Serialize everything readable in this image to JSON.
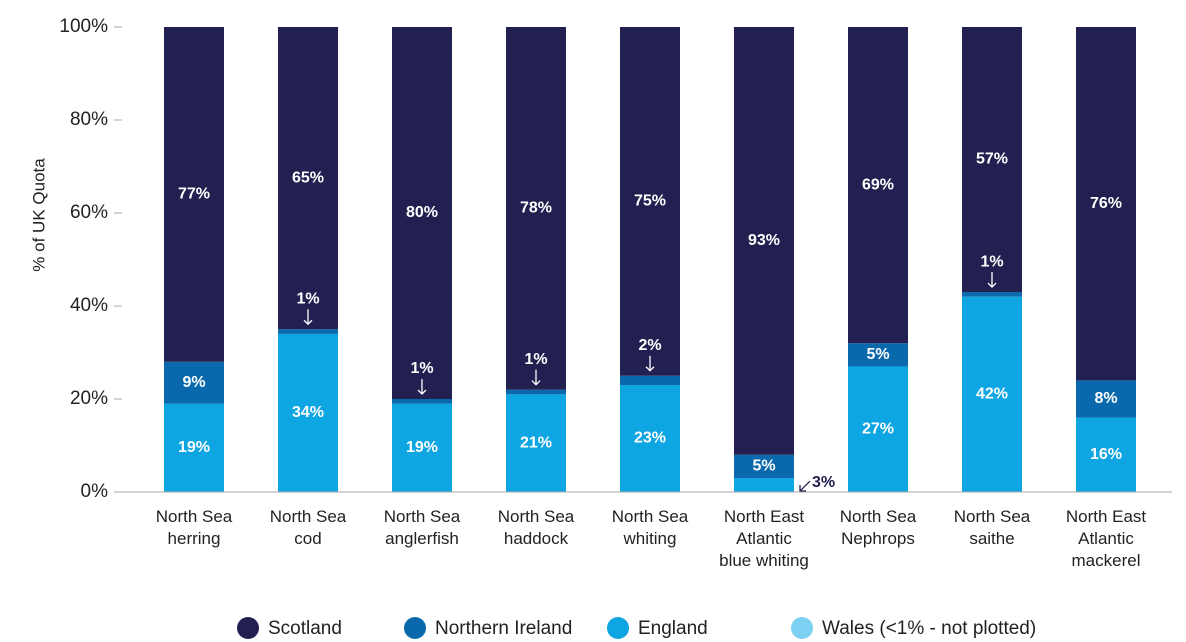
{
  "chart_data": {
    "type": "stacked_bar",
    "y_label": "% of UK Quota",
    "categories": [
      "North Sea\nherring",
      "North Sea\ncod",
      "North Sea\nanglerfish",
      "North Sea\nhaddock",
      "North Sea\nwhiting",
      "North East\nAtlantic\nblue whiting",
      "North Sea\nNephrops",
      "North Sea\nsaithe",
      "North East\nAtlantic\nmackerel"
    ],
    "series": [
      {
        "name": "England",
        "color": "#0ea5e3",
        "values": [
          19,
          34,
          19,
          21,
          23,
          3,
          27,
          42,
          16
        ],
        "value_labels": [
          "19%",
          "34%",
          "19%",
          "21%",
          "23%",
          "3%",
          "27%",
          "42%",
          "16%"
        ]
      },
      {
        "name": "Northern Ireland",
        "color": "#0a69ad",
        "values": [
          9,
          1,
          1,
          1,
          2,
          5,
          5,
          1,
          8
        ],
        "value_labels": [
          "9%",
          "1%",
          "1%",
          "1%",
          "2%",
          "5%",
          "5%",
          "1%",
          "8%"
        ]
      },
      {
        "name": "Scotland",
        "color": "#222050",
        "values": [
          77,
          65,
          80,
          78,
          75,
          93,
          69,
          57,
          76
        ],
        "value_labels": [
          "77%",
          "65%",
          "80%",
          "78%",
          "75%",
          "93%",
          "69%",
          "57%",
          "76%"
        ]
      },
      {
        "name": "Wales (<1% - not plotted)",
        "color": "#7dd0f2",
        "values": [
          null,
          null,
          null,
          null,
          null,
          null,
          null,
          null,
          null
        ]
      }
    ],
    "legend_order": [
      2,
      1,
      0,
      3
    ],
    "ylim": [
      0,
      100
    ],
    "yticks": [
      {
        "value": 0,
        "label": "0%"
      },
      {
        "value": 20,
        "label": "20%"
      },
      {
        "value": 40,
        "label": "40%"
      },
      {
        "value": 60,
        "label": "60%"
      },
      {
        "value": 80,
        "label": "80%"
      },
      {
        "value": 100,
        "label": "100%"
      }
    ],
    "grid": false
  }
}
